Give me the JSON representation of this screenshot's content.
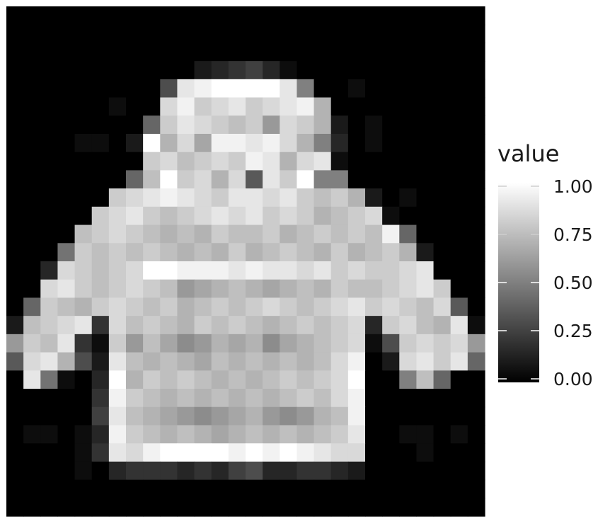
{
  "chart_data": {
    "type": "heatmap",
    "title": "",
    "xlabel": "",
    "ylabel": "",
    "colorscale": {
      "low": "#000000",
      "high": "#ffffff",
      "range": [
        0,
        1
      ]
    },
    "legend": {
      "title": "value",
      "position": "right",
      "ticks": [
        0,
        0.25,
        0.5,
        0.75,
        1
      ],
      "tick_labels": [
        "0.00",
        "0.25",
        "0.50",
        "0.75",
        "1.00"
      ]
    },
    "rows": 28,
    "cols": 28,
    "values": [
      [
        0,
        0,
        0,
        0,
        0,
        0,
        0,
        0,
        0,
        0,
        0,
        0,
        0,
        0,
        0,
        0,
        0,
        0,
        0,
        0,
        0,
        0,
        0,
        0,
        0,
        0,
        0,
        0
      ],
      [
        0,
        0,
        0,
        0,
        0,
        0,
        0,
        0,
        0,
        0,
        0,
        0,
        0,
        0,
        0,
        0,
        0,
        0,
        0,
        0,
        0,
        0,
        0,
        0,
        0,
        0,
        0,
        0
      ],
      [
        0,
        0,
        0,
        0,
        0,
        0,
        0,
        0,
        0,
        0,
        0,
        0,
        0,
        0,
        0,
        0,
        0,
        0,
        0,
        0,
        0,
        0,
        0,
        0,
        0,
        0,
        0,
        0
      ],
      [
        0,
        0,
        0,
        0,
        0,
        0,
        0,
        0,
        0,
        0,
        0,
        0.1,
        0.15,
        0.2,
        0.25,
        0.15,
        0.05,
        0,
        0,
        0,
        0,
        0,
        0,
        0,
        0,
        0,
        0,
        0
      ],
      [
        0,
        0,
        0,
        0,
        0,
        0,
        0,
        0,
        0,
        0.3,
        0.9,
        0.95,
        1,
        1,
        1,
        1,
        0.9,
        0.5,
        0,
        0,
        0.05,
        0,
        0,
        0,
        0,
        0,
        0,
        0
      ],
      [
        0,
        0,
        0,
        0,
        0,
        0,
        0.05,
        0,
        0,
        0.85,
        0.95,
        0.8,
        0.85,
        0.9,
        0.8,
        0.85,
        0.9,
        0.95,
        0.7,
        0,
        0,
        0,
        0,
        0,
        0,
        0,
        0,
        0
      ],
      [
        0,
        0,
        0,
        0,
        0,
        0,
        0,
        0,
        0.4,
        0.8,
        0.9,
        0.85,
        0.8,
        0.75,
        0.8,
        0.6,
        0.85,
        0.8,
        0.7,
        0.1,
        0,
        0.05,
        0,
        0,
        0,
        0,
        0,
        0
      ],
      [
        0,
        0,
        0,
        0,
        0.05,
        0.05,
        0,
        0.1,
        1,
        0.7,
        0.85,
        0.65,
        0.95,
        0.95,
        0.9,
        0.95,
        0.85,
        0.7,
        0.5,
        0.15,
        0,
        0.05,
        0,
        0,
        0,
        0,
        0,
        0
      ],
      [
        0,
        0,
        0,
        0,
        0,
        0,
        0,
        0,
        0.8,
        0.85,
        0.75,
        0.8,
        0.85,
        0.8,
        0.95,
        0.9,
        0.7,
        0.85,
        0.9,
        0.05,
        0,
        0,
        0,
        0,
        0,
        0,
        0,
        0
      ],
      [
        0,
        0,
        0,
        0,
        0,
        0,
        0,
        0.4,
        0.75,
        1,
        0.8,
        0.85,
        0.7,
        0.85,
        0.35,
        0.9,
        0.8,
        1,
        0.5,
        0.5,
        0,
        0,
        0,
        0,
        0,
        0,
        0,
        0
      ],
      [
        0,
        0,
        0,
        0,
        0,
        0,
        0.8,
        0.85,
        0.9,
        0.95,
        0.9,
        0.85,
        0.8,
        0.9,
        0.9,
        0.85,
        0.9,
        0.8,
        0.75,
        0.8,
        0.7,
        0.1,
        0,
        0.05,
        0,
        0,
        0,
        0
      ],
      [
        0,
        0,
        0,
        0,
        0,
        0.8,
        0.85,
        0.9,
        0.8,
        0.75,
        0.8,
        0.85,
        0.9,
        0.85,
        0.9,
        0.8,
        0.85,
        0.8,
        0.7,
        0.75,
        0.8,
        0.85,
        0.05,
        0,
        0,
        0,
        0,
        0
      ],
      [
        0,
        0,
        0,
        0,
        0.75,
        0.8,
        0.85,
        0.8,
        0.75,
        0.7,
        0.75,
        0.7,
        0.8,
        0.75,
        0.75,
        0.8,
        0.7,
        0.75,
        0.8,
        0.75,
        0.8,
        0.75,
        0.95,
        0.4,
        0,
        0,
        0,
        0
      ],
      [
        0,
        0,
        0,
        0.45,
        0.8,
        0.75,
        0.8,
        0.75,
        0.8,
        0.75,
        0.7,
        0.75,
        0.7,
        0.8,
        0.7,
        0.75,
        0.8,
        0.75,
        0.7,
        0.8,
        0.7,
        0.75,
        0.8,
        0.7,
        0.1,
        0,
        0,
        0
      ],
      [
        0,
        0,
        0.15,
        0.85,
        0.8,
        0.75,
        0.8,
        0.85,
        1,
        1,
        0.95,
        0.95,
        0.95,
        0.9,
        0.95,
        0.9,
        0.9,
        0.85,
        0.9,
        0.8,
        0.85,
        0.8,
        0.8,
        0.85,
        0.9,
        0,
        0,
        0
      ],
      [
        0,
        0,
        0.85,
        0.9,
        0.8,
        0.75,
        0.8,
        0.85,
        0.8,
        0.75,
        0.6,
        0.65,
        0.7,
        0.75,
        0.7,
        0.65,
        0.7,
        0.75,
        0.7,
        0.8,
        0.75,
        0.75,
        0.8,
        0.85,
        0.9,
        0.8,
        0,
        0
      ],
      [
        0,
        0.4,
        0.8,
        0.75,
        0.7,
        0.8,
        0.85,
        0.8,
        0.75,
        0.8,
        0.7,
        0.75,
        0.8,
        0.75,
        0.8,
        0.85,
        0.8,
        0.75,
        0.8,
        0.85,
        0.9,
        0.8,
        0.85,
        0.8,
        0.75,
        0.85,
        0.35,
        0
      ],
      [
        0.1,
        0.75,
        0.8,
        0.85,
        0.9,
        0.2,
        0.85,
        0.75,
        0.8,
        0.75,
        0.7,
        0.8,
        0.75,
        0.8,
        0.75,
        0.7,
        0.75,
        0.8,
        0.75,
        0.8,
        0.85,
        0.15,
        0.8,
        0.85,
        0.75,
        0.7,
        0.9,
        0.05
      ],
      [
        0.6,
        0.8,
        0.75,
        0.9,
        0.2,
        0.05,
        0.8,
        0.6,
        0.75,
        0.65,
        0.55,
        0.6,
        0.7,
        0.65,
        0.7,
        0.55,
        0.65,
        0.7,
        0.75,
        0.8,
        0.85,
        0.05,
        0.3,
        0.8,
        0.85,
        0.8,
        0.85,
        0.6
      ],
      [
        0.35,
        0.85,
        0.9,
        0.7,
        0.3,
        0.1,
        0.9,
        0.75,
        0.7,
        0.75,
        0.7,
        0.65,
        0.75,
        0.7,
        0.75,
        0.7,
        0.75,
        0.7,
        0.75,
        0.85,
        0.95,
        0,
        0.1,
        0.85,
        0.9,
        0.8,
        0.9,
        0.4
      ],
      [
        0,
        0.9,
        0.45,
        0.05,
        0,
        0.15,
        1,
        0.7,
        0.8,
        0.75,
        0.8,
        0.75,
        0.7,
        0.75,
        0.7,
        0.75,
        0.8,
        0.75,
        0.8,
        0.85,
        1,
        0,
        0,
        0.5,
        0.75,
        0.4,
        0,
        0
      ],
      [
        0,
        0,
        0,
        0,
        0,
        0.2,
        0.95,
        0.8,
        0.75,
        0.7,
        0.75,
        0.7,
        0.75,
        0.7,
        0.75,
        0.7,
        0.75,
        0.8,
        0.75,
        0.85,
        0.95,
        0,
        0,
        0,
        0,
        0,
        0,
        0
      ],
      [
        0,
        0,
        0,
        0,
        0,
        0.25,
        0.9,
        0.75,
        0.7,
        0.65,
        0.6,
        0.55,
        0.6,
        0.65,
        0.7,
        0.6,
        0.55,
        0.6,
        0.7,
        0.75,
        0.95,
        0,
        0,
        0,
        0,
        0,
        0,
        0
      ],
      [
        0,
        0.05,
        0.05,
        0,
        0.05,
        0.15,
        0.95,
        0.8,
        0.75,
        0.7,
        0.75,
        0.7,
        0.65,
        0.7,
        0.75,
        0.7,
        0.75,
        0.7,
        0.75,
        0.8,
        0.9,
        0,
        0,
        0.05,
        0.05,
        0,
        0.05,
        0
      ],
      [
        0,
        0,
        0,
        0,
        0.05,
        0.2,
        0.9,
        0.85,
        0.95,
        1,
        1,
        1,
        1,
        0.95,
        1,
        0.95,
        1,
        0.95,
        0.9,
        0.85,
        0.85,
        0,
        0,
        0,
        0.05,
        0,
        0,
        0
      ],
      [
        0,
        0,
        0,
        0,
        0.05,
        0,
        0.15,
        0.2,
        0.2,
        0.2,
        0.15,
        0.2,
        0.15,
        0.25,
        0.3,
        0.15,
        0.15,
        0.2,
        0.2,
        0.15,
        0.1,
        0,
        0,
        0,
        0,
        0,
        0,
        0
      ],
      [
        0,
        0,
        0,
        0,
        0,
        0,
        0,
        0,
        0,
        0,
        0,
        0,
        0,
        0,
        0,
        0,
        0,
        0,
        0,
        0,
        0,
        0,
        0,
        0,
        0,
        0,
        0,
        0
      ],
      [
        0,
        0,
        0,
        0,
        0,
        0,
        0,
        0,
        0,
        0,
        0,
        0,
        0,
        0,
        0,
        0,
        0,
        0,
        0,
        0,
        0,
        0,
        0,
        0,
        0,
        0,
        0,
        0
      ]
    ]
  }
}
